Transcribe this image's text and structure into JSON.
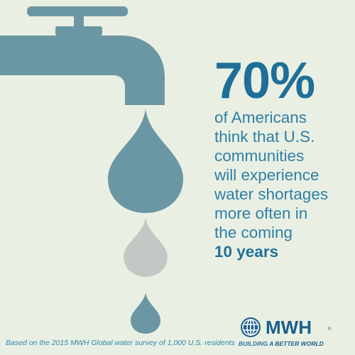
{
  "colors": {
    "background": "#e9f0e3",
    "faucet": "#6b97a4",
    "drop_large": "#6b97a4",
    "drop_middle": "#c4c8c4",
    "drop_small": "#6b97a4",
    "accent_blue": "#1f6f98"
  },
  "stat": {
    "percent": "70%",
    "lines": [
      "of Americans",
      "think that U.S.",
      "communities",
      "will experience",
      "water shortages",
      "more often in",
      "the coming"
    ],
    "emphasis": "10 years"
  },
  "footnote": "Based on the 2015 MWH Global water survey of 1,000 U.S. residents",
  "brand": {
    "name": "MWH",
    "trademark": "®",
    "tagline_part1": "BUILDING ",
    "tagline_accent": "A BETTER WORLD",
    "logo_icon": "globe-icon"
  }
}
